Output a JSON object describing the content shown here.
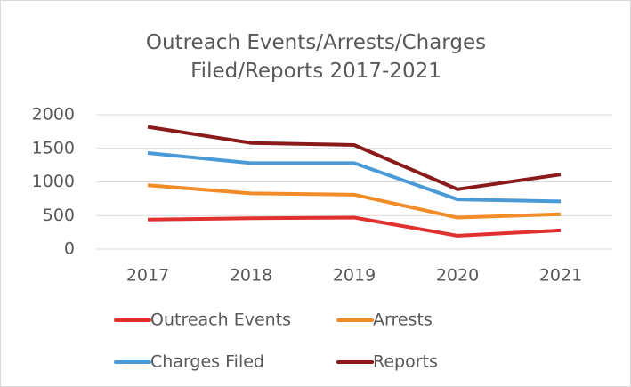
{
  "chart_data": {
    "type": "line",
    "title": "Outreach Events/Arrests/Charges Filed/Reports 2017-2021",
    "categories": [
      "2017",
      "2018",
      "2019",
      "2020",
      "2021"
    ],
    "series": [
      {
        "name": "Outreach Events",
        "color": "#e03030",
        "values": [
          440,
          460,
          470,
          200,
          280
        ]
      },
      {
        "name": "Arrests",
        "color": "#f28c28",
        "values": [
          950,
          830,
          810,
          470,
          520
        ]
      },
      {
        "name": "Charges Filed",
        "color": "#4a9ad8",
        "values": [
          1430,
          1280,
          1280,
          740,
          710
        ]
      },
      {
        "name": "Reports",
        "color": "#8b1a1a",
        "values": [
          1820,
          1580,
          1550,
          890,
          1110
        ]
      }
    ],
    "ylim": [
      0,
      2000
    ],
    "yticks": [
      0,
      500,
      1000,
      1500,
      2000
    ],
    "grid": true,
    "legend": "bottom"
  }
}
